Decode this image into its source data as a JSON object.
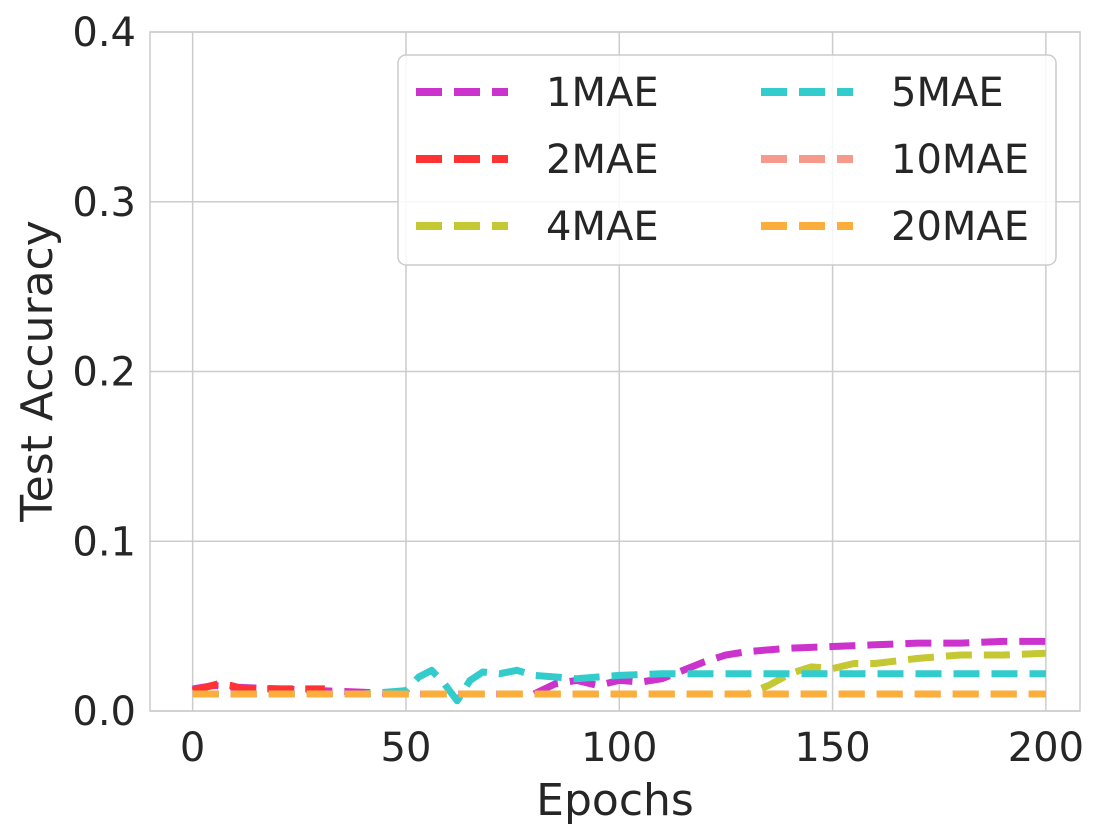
{
  "chart_data": {
    "type": "line",
    "title": "",
    "xlabel": "Epochs",
    "ylabel": "Test Accuracy",
    "xlim": [
      -10,
      208
    ],
    "ylim": [
      0,
      0.4
    ],
    "xticks": [
      "0",
      "50",
      "100",
      "150",
      "200"
    ],
    "yticks": [
      "0.0",
      "0.1",
      "0.2",
      "0.3",
      "0.4"
    ],
    "grid": true,
    "legend_position": "top-right",
    "legend_columns": 2,
    "series": [
      {
        "name": "1MAE",
        "color": "#cc33cc",
        "x": [
          0,
          5,
          10,
          20,
          30,
          40,
          50,
          60,
          70,
          80,
          85,
          90,
          95,
          100,
          105,
          110,
          115,
          120,
          125,
          130,
          140,
          150,
          160,
          170,
          180,
          190,
          200
        ],
        "y": [
          0.013,
          0.015,
          0.014,
          0.013,
          0.012,
          0.011,
          0.01,
          0.01,
          0.01,
          0.01,
          0.016,
          0.018,
          0.015,
          0.018,
          0.017,
          0.019,
          0.024,
          0.029,
          0.033,
          0.035,
          0.037,
          0.038,
          0.039,
          0.04,
          0.04,
          0.041,
          0.041
        ]
      },
      {
        "name": "2MAE",
        "color": "#ff3333",
        "x": [
          0,
          3,
          6,
          9,
          12,
          15,
          20,
          25,
          31
        ],
        "y": [
          0.012,
          0.014,
          0.016,
          0.015,
          0.013,
          0.013,
          0.013,
          0.013,
          0.013
        ]
      },
      {
        "name": "4MAE",
        "color": "#c4c832",
        "x": [
          0,
          20,
          40,
          60,
          80,
          100,
          120,
          130,
          135,
          140,
          145,
          150,
          155,
          160,
          170,
          180,
          190,
          200
        ],
        "y": [
          0.01,
          0.01,
          0.01,
          0.01,
          0.01,
          0.01,
          0.01,
          0.01,
          0.015,
          0.022,
          0.026,
          0.025,
          0.028,
          0.028,
          0.031,
          0.033,
          0.033,
          0.034
        ]
      },
      {
        "name": "5MAE",
        "color": "#33cccc",
        "x": [
          0,
          20,
          40,
          50,
          53,
          56,
          59,
          62,
          65,
          68,
          72,
          76,
          80,
          85,
          90,
          95,
          100,
          110,
          120,
          130,
          140,
          150,
          160,
          170,
          180,
          190,
          200
        ],
        "y": [
          0.01,
          0.01,
          0.01,
          0.012,
          0.02,
          0.024,
          0.016,
          0.006,
          0.018,
          0.023,
          0.022,
          0.024,
          0.021,
          0.02,
          0.019,
          0.02,
          0.021,
          0.022,
          0.022,
          0.022,
          0.022,
          0.022,
          0.022,
          0.022,
          0.022,
          0.022,
          0.022
        ]
      },
      {
        "name": "10MAE",
        "color": "#f79a8e",
        "x": [
          0,
          50,
          100,
          150,
          200
        ],
        "y": [
          0.01,
          0.01,
          0.01,
          0.01,
          0.01
        ]
      },
      {
        "name": "20MAE",
        "color": "#fbae3c",
        "x": [
          0,
          50,
          100,
          150,
          200
        ],
        "y": [
          0.01,
          0.01,
          0.01,
          0.01,
          0.01
        ]
      }
    ]
  }
}
